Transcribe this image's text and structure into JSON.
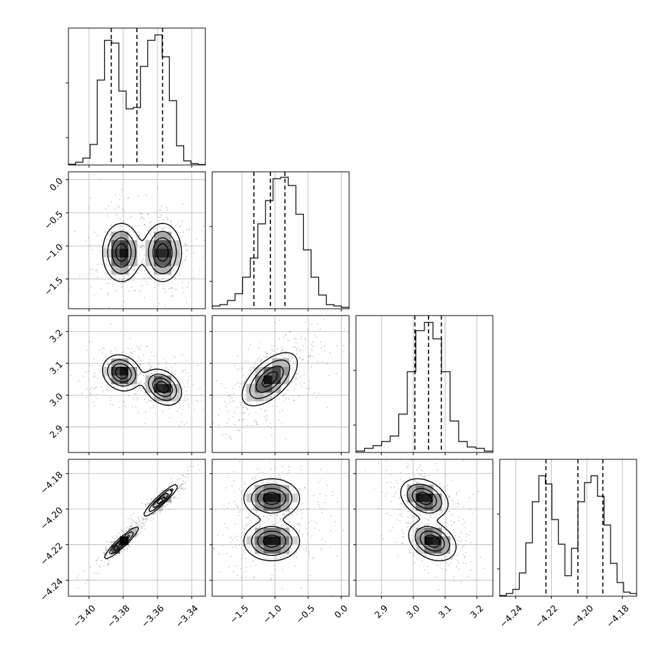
{
  "chart_data": {
    "type": "corner",
    "grid": true,
    "parameters": [
      {
        "range": [
          -3.412,
          -3.332
        ],
        "ticks": [
          {
            "v": -3.4,
            "label": "−3.40"
          },
          {
            "v": -3.38,
            "label": "−3.38"
          },
          {
            "v": -3.36,
            "label": "−3.36"
          },
          {
            "v": -3.34,
            "label": "−3.34"
          }
        ],
        "histogram": [
          0.005,
          0.02,
          0.05,
          0.15,
          0.62,
          0.91,
          0.89,
          0.54,
          0.41,
          0.42,
          0.72,
          0.91,
          0.95,
          0.79,
          0.47,
          0.14,
          0.03,
          0.01,
          0.003
        ],
        "quantiles": [
          -3.387,
          -3.372,
          -3.357
        ]
      },
      {
        "range": [
          -1.95,
          0.12
        ],
        "ticks": [
          {
            "v": -1.5,
            "label": "−1.5"
          },
          {
            "v": -1.0,
            "label": "−1.0"
          },
          {
            "v": -0.5,
            "label": "−0.5"
          },
          {
            "v": 0.0,
            "label": "0.0"
          }
        ],
        "histogram": [
          0.02,
          0.03,
          0.06,
          0.11,
          0.23,
          0.37,
          0.62,
          0.79,
          0.95,
          0.96,
          0.9,
          0.69,
          0.43,
          0.23,
          0.1,
          0.03,
          0.02,
          0.01
        ],
        "quantiles": [
          -1.32,
          -1.07,
          -0.85
        ]
      },
      {
        "range": [
          2.82,
          3.25
        ],
        "ticks": [
          {
            "v": 2.9,
            "label": "2.9"
          },
          {
            "v": 3.0,
            "label": "3.0"
          },
          {
            "v": 3.1,
            "label": "3.1"
          },
          {
            "v": 3.2,
            "label": "3.2"
          }
        ],
        "histogram": [
          0.01,
          0.03,
          0.05,
          0.08,
          0.12,
          0.28,
          0.59,
          0.89,
          0.95,
          0.83,
          0.59,
          0.23,
          0.08,
          0.04,
          0.03,
          0.01
        ],
        "quantiles": [
          3.005,
          3.048,
          3.088
        ]
      },
      {
        "range": [
          -4.249,
          -4.172
        ],
        "ticks": [
          {
            "v": -4.24,
            "label": "−4.24"
          },
          {
            "v": -4.22,
            "label": "−4.22"
          },
          {
            "v": -4.2,
            "label": "−4.20"
          },
          {
            "v": -4.18,
            "label": "−4.18"
          }
        ],
        "histogram": [
          0.005,
          0.02,
          0.05,
          0.17,
          0.39,
          0.69,
          0.88,
          0.82,
          0.56,
          0.38,
          0.15,
          0.35,
          0.69,
          0.83,
          0.88,
          0.73,
          0.52,
          0.24,
          0.1,
          0.03,
          0.02
        ],
        "quantiles": [
          -4.223,
          -4.205,
          -4.191
        ]
      }
    ],
    "pairs": [
      {
        "row": 1,
        "col": 0,
        "modes": [
          {
            "c": [
              -3.381,
              -1.1
            ],
            "s": [
              0.0055,
              0.22
            ],
            "r": 0.0
          },
          {
            "c": [
              -3.357,
              -1.1
            ],
            "s": [
              0.0055,
              0.22
            ],
            "r": 0.0
          }
        ],
        "scatter_spread": [
          1.8,
          1.8
        ]
      },
      {
        "row": 2,
        "col": 0,
        "modes": [
          {
            "c": [
              -3.381,
              3.07
            ],
            "s": [
              0.0055,
              0.028
            ],
            "r": -0.15
          },
          {
            "c": [
              -3.357,
              3.025
            ],
            "s": [
              0.0055,
              0.028
            ],
            "r": -0.3
          }
        ],
        "scatter_spread": [
          1.8,
          1.8
        ]
      },
      {
        "row": 2,
        "col": 1,
        "modes": [
          {
            "c": [
              -1.08,
              3.05
            ],
            "s": [
              0.21,
              0.042
            ],
            "r": 0.6
          }
        ],
        "scatter_spread": [
          2.0,
          2.0
        ]
      },
      {
        "row": 3,
        "col": 0,
        "modes": [
          {
            "c": [
              -3.381,
              -4.219
            ],
            "s": [
              0.005,
              0.0045
            ],
            "r": 0.93
          },
          {
            "c": [
              -3.358,
              -4.195
            ],
            "s": [
              0.005,
              0.0045
            ],
            "r": 0.93
          }
        ],
        "scatter_spread": [
          1.9,
          1.9
        ]
      },
      {
        "row": 3,
        "col": 1,
        "modes": [
          {
            "c": [
              -1.05,
              -4.194
            ],
            "s": [
              0.21,
              0.0055
            ],
            "r": 0.0
          },
          {
            "c": [
              -1.05,
              -4.218
            ],
            "s": [
              0.21,
              0.0055
            ],
            "r": 0.0
          }
        ],
        "scatter_spread": [
          1.8,
          1.8
        ]
      },
      {
        "row": 3,
        "col": 2,
        "modes": [
          {
            "c": [
              3.035,
              -4.194
            ],
            "s": [
              0.037,
              0.0055
            ],
            "r": -0.3
          },
          {
            "c": [
              3.06,
              -4.218
            ],
            "s": [
              0.037,
              0.0055
            ],
            "r": -0.3
          }
        ],
        "scatter_spread": [
          1.8,
          1.8
        ]
      }
    ]
  }
}
